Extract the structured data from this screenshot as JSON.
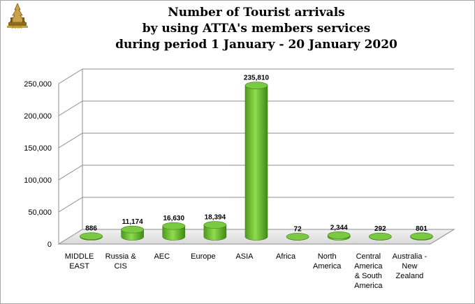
{
  "logo": {
    "text": "ATTA",
    "color": "#b8860b"
  },
  "chart_data": {
    "type": "bar",
    "title_lines": [
      "Number of Tourist arrivals",
      "by using ATTA's members services",
      "during period 1 January - 20 January 2020"
    ],
    "categories": [
      [
        "MIDDLE",
        "EAST"
      ],
      [
        "Russia &",
        "CIS"
      ],
      [
        "AEC"
      ],
      [
        "Europe"
      ],
      [
        "ASIA"
      ],
      [
        "Africa"
      ],
      [
        "North",
        "America"
      ],
      [
        "Central",
        "America",
        "& South",
        "America"
      ],
      [
        "Australia -",
        "New",
        "Zealand"
      ]
    ],
    "values": [
      886,
      11174,
      16630,
      18394,
      235810,
      72,
      2344,
      292,
      801
    ],
    "data_labels": [
      "886",
      "11,174",
      "16,630",
      "18,394",
      "235,810",
      "72",
      "2,344",
      "292",
      "801"
    ],
    "ylim": [
      0,
      250000
    ],
    "yticks": [
      0,
      50000,
      100000,
      150000,
      200000,
      250000
    ],
    "ytick_labels": [
      "0",
      "50,000",
      "100,000",
      "150,000",
      "200,000",
      "250,000"
    ],
    "grid": true,
    "bar_color": "#7ac943",
    "xlabel": "",
    "ylabel": ""
  }
}
